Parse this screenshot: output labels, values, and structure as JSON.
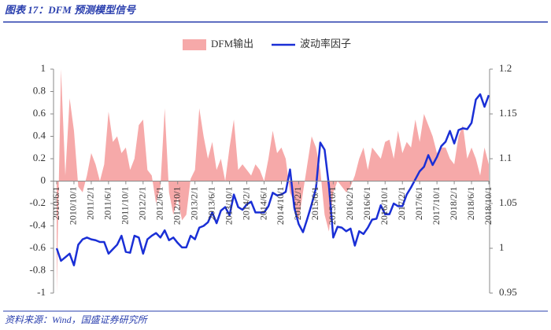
{
  "chart_data": {
    "type": "combo",
    "title": "图表 17：DFM 预测模型信号",
    "source": "资料来源：Wind，国盛证券研究所",
    "categories": [
      "2010/6/1",
      null,
      null,
      null,
      "2010/10/1",
      null,
      null,
      null,
      "2011/2/1",
      null,
      null,
      null,
      "2011/6/1",
      null,
      null,
      null,
      "2011/10/1",
      null,
      null,
      null,
      "2012/2/1",
      null,
      null,
      null,
      "2012/6/1",
      null,
      null,
      null,
      "2012/10/1",
      null,
      null,
      null,
      "2013/2/1",
      null,
      null,
      null,
      "2013/6/1",
      null,
      null,
      null,
      "2013/10/1",
      null,
      null,
      null,
      "2014/2/1",
      null,
      null,
      null,
      "2014/6/1",
      null,
      null,
      null,
      "2014/10/1",
      null,
      null,
      null,
      "2015/2/1",
      null,
      null,
      null,
      "2015/6/1",
      null,
      null,
      null,
      "2015/10/1",
      null,
      null,
      null,
      "2016/2/1",
      null,
      null,
      null,
      "2016/6/1",
      null,
      null,
      null,
      "2016/10/1",
      null,
      null,
      null,
      "2017/2/1",
      null,
      null,
      null,
      "2017/6/1",
      null,
      null,
      null,
      "2017/10/1",
      null,
      null,
      null,
      "2018/2/1",
      null,
      null,
      null,
      "2018/6/1",
      null,
      null,
      null,
      "2018/10/1"
    ],
    "series": [
      {
        "name": "DFM输出",
        "type": "area",
        "color": "#f6a9a9",
        "values": [
          -1.0,
          1.0,
          0.05,
          0.74,
          0.45,
          -0.05,
          -0.1,
          0.05,
          0.25,
          0.15,
          0.0,
          0.15,
          0.62,
          0.35,
          0.4,
          0.25,
          0.3,
          0.1,
          0.2,
          0.5,
          0.55,
          0.1,
          0.05,
          -0.2,
          -0.05,
          0.65,
          -0.1,
          -0.3,
          -0.15,
          -0.35,
          -0.3,
          0.02,
          0.1,
          0.65,
          0.4,
          0.2,
          0.35,
          0.1,
          0.2,
          0.0,
          0.3,
          0.55,
          0.1,
          0.15,
          0.1,
          0.05,
          0.15,
          0.1,
          0.0,
          0.2,
          0.45,
          0.25,
          0.3,
          0.2,
          -0.1,
          -0.2,
          -0.35,
          -0.1,
          0.15,
          0.4,
          0.3,
          0.1,
          -0.3,
          -0.45,
          -0.1,
          0.0,
          -0.05,
          -0.1,
          -0.05,
          0.05,
          0.2,
          0.3,
          0.1,
          0.3,
          0.25,
          0.2,
          0.35,
          0.37,
          0.2,
          0.45,
          0.25,
          0.35,
          0.3,
          0.55,
          0.35,
          0.6,
          0.5,
          0.4,
          0.25,
          0.3,
          0.3,
          0.2,
          0.15,
          0.4,
          0.5,
          0.2,
          0.3,
          0.2,
          0.05,
          0.3,
          0.15
        ]
      },
      {
        "name": "波动率因子",
        "type": "line",
        "axis": "y2",
        "color": "#1a2fd6",
        "values": [
          1.0,
          0.986,
          0.99,
          0.994,
          0.981,
          1.004,
          1.01,
          1.012,
          1.01,
          1.009,
          1.007,
          1.007,
          0.994,
          0.999,
          1.004,
          1.014,
          0.996,
          0.995,
          1.014,
          1.012,
          0.994,
          1.01,
          1.014,
          1.017,
          1.012,
          1.02,
          1.009,
          1.012,
          1.006,
          1.001,
          1.001,
          1.014,
          1.01,
          1.023,
          1.025,
          1.029,
          1.04,
          1.028,
          1.042,
          1.046,
          1.037,
          1.06,
          1.046,
          1.043,
          1.049,
          1.052,
          1.04,
          1.04,
          1.04,
          1.047,
          1.062,
          1.059,
          1.06,
          1.063,
          1.088,
          1.045,
          1.027,
          1.018,
          1.033,
          1.049,
          1.067,
          1.118,
          1.11,
          1.07,
          1.012,
          1.024,
          1.023,
          1.019,
          1.022,
          1.003,
          1.019,
          1.016,
          1.023,
          1.032,
          1.033,
          1.048,
          1.038,
          1.038,
          1.05,
          1.047,
          1.047,
          1.06,
          1.068,
          1.077,
          1.086,
          1.091,
          1.104,
          1.093,
          1.102,
          1.114,
          1.119,
          1.131,
          1.117,
          1.132,
          1.134,
          1.133,
          1.14,
          1.166,
          1.172,
          1.158,
          1.171
        ]
      }
    ],
    "ylim": [
      -1,
      1
    ],
    "yticks": [
      -1,
      -0.8,
      -0.6,
      -0.4,
      -0.2,
      0,
      0.2,
      0.4,
      0.6,
      0.8,
      1
    ],
    "y2lim": [
      0.95,
      1.2
    ],
    "y2ticks": [
      0.95,
      1,
      1.05,
      1.1,
      1.15,
      1.2
    ],
    "grid": false,
    "legend": "top"
  }
}
